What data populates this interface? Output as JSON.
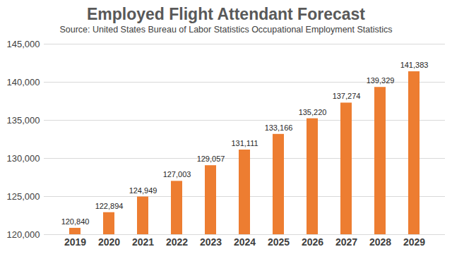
{
  "chart_data": {
    "type": "bar",
    "title": "Employed Flight Attendant Forecast",
    "subtitle": "Source: United States Bureau of Labor Statistics Occupational Employment Statistics",
    "categories": [
      "2019",
      "2020",
      "2021",
      "2022",
      "2023",
      "2024",
      "2025",
      "2026",
      "2027",
      "2028",
      "2029"
    ],
    "values": [
      120840,
      122894,
      124949,
      127003,
      129057,
      131111,
      133166,
      135220,
      137274,
      139329,
      141383
    ],
    "value_labels": [
      "120,840",
      "122,894",
      "124,949",
      "127,003",
      "129,057",
      "131,111",
      "133,166",
      "135,220",
      "137,274",
      "139,329",
      "141,383"
    ],
    "color": "#ed7d31",
    "ylim": [
      120000,
      145000
    ],
    "yticks": [
      {
        "value": 120000,
        "label": "120,000"
      },
      {
        "value": 125000,
        "label": "125,000"
      },
      {
        "value": 130000,
        "label": "130,000"
      },
      {
        "value": 135000,
        "label": "135,000"
      },
      {
        "value": 140000,
        "label": "140,000"
      },
      {
        "value": 145000,
        "label": "145,000"
      }
    ],
    "grid": true,
    "data_labels": true
  }
}
